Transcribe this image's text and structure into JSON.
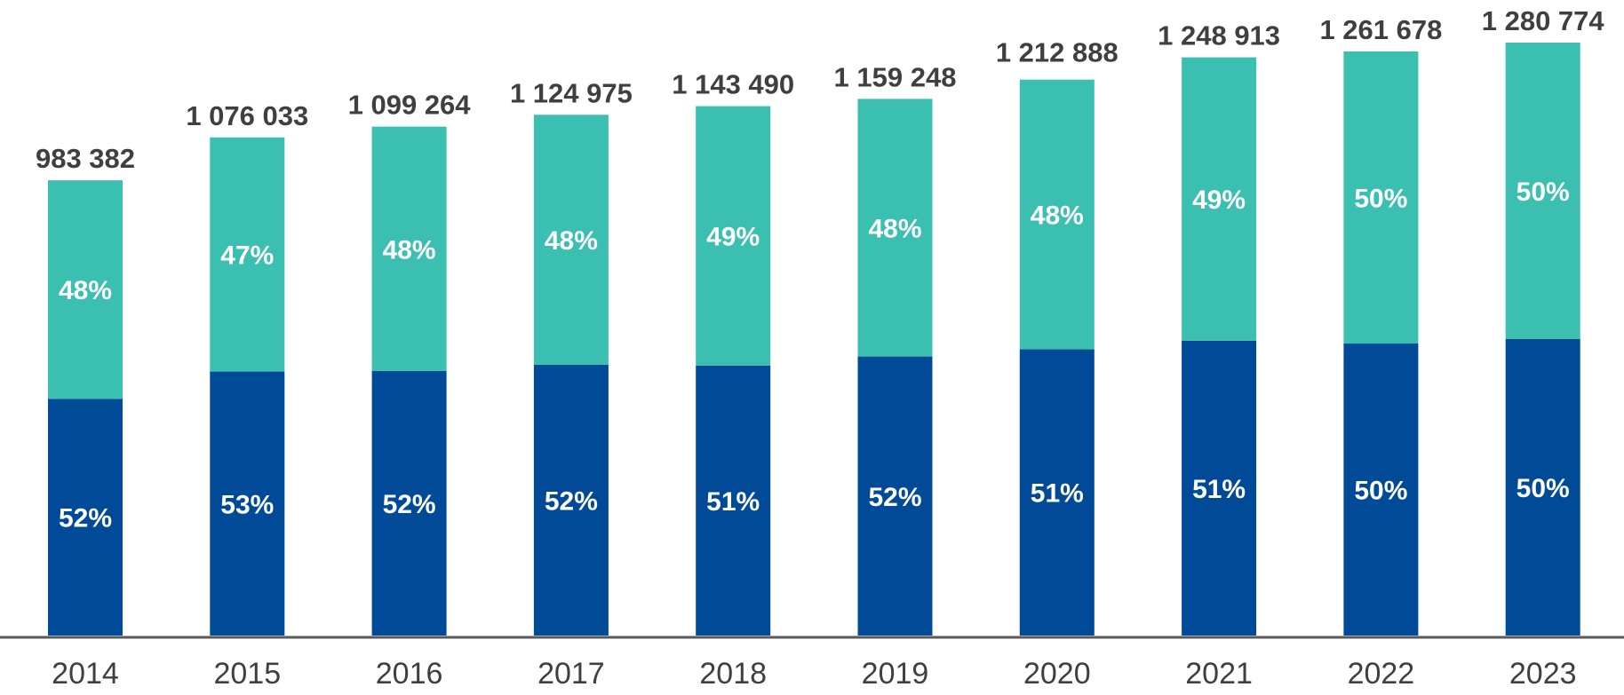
{
  "chart_data": {
    "type": "bar",
    "stacked": true,
    "title": "",
    "xlabel": "",
    "ylabel": "",
    "categories": [
      "2014",
      "2015",
      "2016",
      "2017",
      "2018",
      "2019",
      "2020",
      "2021",
      "2022",
      "2023"
    ],
    "totals": [
      983382,
      1076033,
      1099264,
      1124975,
      1143490,
      1159248,
      1212888,
      1248913,
      1261678,
      1280774
    ],
    "total_labels": [
      "983 382",
      "1 076 033",
      "1 099 264",
      "1 124 975",
      "1 143 490",
      "1 159 248",
      "1 212 888",
      "1 248 913",
      "1 261 678",
      "1 280 774"
    ],
    "series": [
      {
        "name": "bottom",
        "color": "#014a98",
        "percent": [
          52,
          53,
          52,
          52,
          51,
          52,
          51,
          51,
          50,
          50
        ],
        "labels": [
          "52%",
          "53%",
          "52%",
          "52%",
          "51%",
          "52%",
          "51%",
          "51%",
          "50%",
          "50%"
        ]
      },
      {
        "name": "top",
        "color": "#3bbfb0",
        "percent": [
          48,
          47,
          48,
          48,
          49,
          48,
          48,
          49,
          50,
          50
        ],
        "labels": [
          "48%",
          "47%",
          "48%",
          "48%",
          "49%",
          "48%",
          "48%",
          "49%",
          "50%",
          "50%"
        ]
      }
    ],
    "ylim": [
      0,
      1330000
    ],
    "grid": false,
    "legend": "none",
    "axis_color": "#595959"
  }
}
